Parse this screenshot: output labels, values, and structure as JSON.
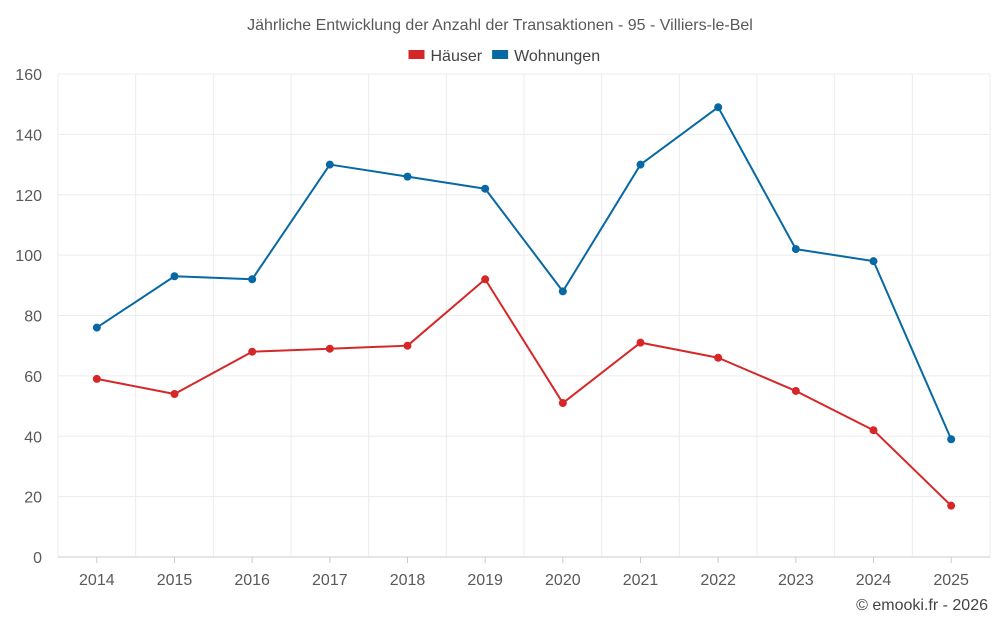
{
  "chart_data": {
    "type": "line",
    "title": "Jährliche Entwicklung der Anzahl der Transaktionen - 95 - Villiers-le-Bel",
    "categories": [
      "2014",
      "2015",
      "2016",
      "2017",
      "2018",
      "2019",
      "2020",
      "2021",
      "2022",
      "2023",
      "2024",
      "2025"
    ],
    "series": [
      {
        "name": "Häuser",
        "color": "#d62728",
        "values": [
          59,
          54,
          68,
          69,
          70,
          92,
          51,
          71,
          66,
          55,
          42,
          17
        ]
      },
      {
        "name": "Wohnungen",
        "color": "#0868a3",
        "values": [
          76,
          93,
          92,
          130,
          126,
          122,
          88,
          130,
          149,
          102,
          98,
          39
        ]
      }
    ],
    "ylim": [
      0,
      160
    ],
    "yticks": [
      "0",
      "20",
      "40",
      "60",
      "80",
      "100",
      "120",
      "140",
      "160"
    ],
    "legend": "top-center",
    "grid": true,
    "credit": "© emooki.fr - 2026"
  }
}
